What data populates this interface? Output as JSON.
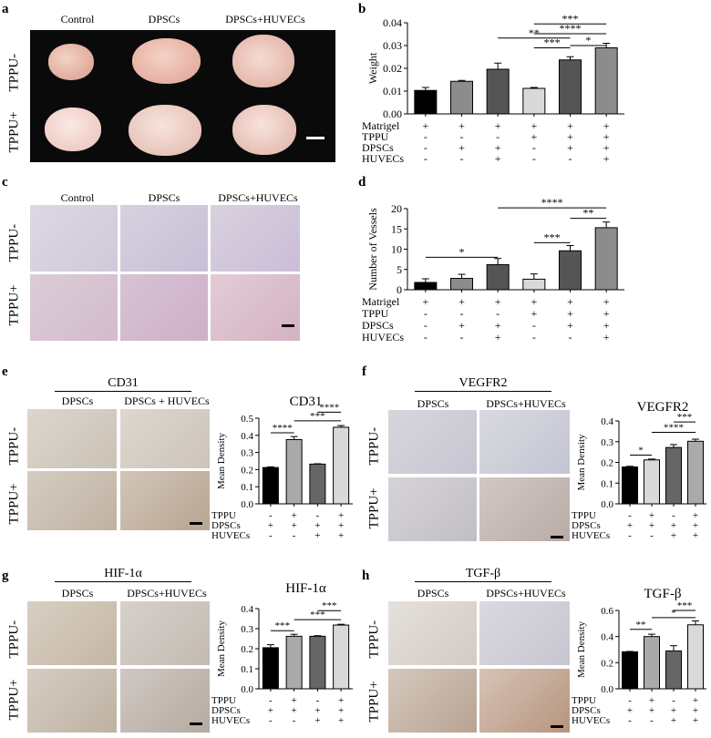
{
  "panels": {
    "a": {
      "letter": "a",
      "cols": [
        "Control",
        "DPSCs",
        "DPSCs+HUVECs"
      ],
      "rows": [
        "TPPU-",
        "TPPU+"
      ]
    },
    "b": {
      "letter": "b"
    },
    "c": {
      "letter": "c",
      "cols": [
        "Control",
        "DPSCs",
        "DPSCs+HUVECs"
      ],
      "rows": [
        "TPPU-",
        "TPPU+"
      ]
    },
    "d": {
      "letter": "d"
    },
    "e": {
      "letter": "e",
      "marker": "CD31",
      "cols": [
        "DPSCs",
        "DPSCs + HUVECs"
      ],
      "rows": [
        "TPPU-",
        "TPPU+"
      ]
    },
    "f": {
      "letter": "f",
      "marker": "VEGFR2",
      "cols": [
        "DPSCs",
        "DPSCs+HUVECs"
      ],
      "rows": [
        "TPPU-",
        "TPPU+"
      ]
    },
    "g": {
      "letter": "g",
      "marker": "HIF-1α",
      "cols": [
        "DPSCs",
        "DPSCs+HUVECs"
      ],
      "rows": [
        "TPPU-",
        "TPPU+"
      ]
    },
    "h": {
      "letter": "h",
      "marker": "TGF-β",
      "cols": [
        "DPSCs",
        "DPSCs+HUVECs"
      ],
      "rows": [
        "TPPU-",
        "TPPU+"
      ]
    }
  },
  "colors": {
    "black": "#000000",
    "dgray": "#555555",
    "mgray": "#8c8c8c",
    "lgray": "#d9d9d9",
    "tissue": "#e9b9ad",
    "he_bg": "#d7d2df",
    "ihc_bg": "#d6cfc6"
  },
  "chart_data": [
    {
      "id": "b",
      "type": "bar",
      "ylabel": "Weight",
      "ylim": [
        0,
        0.04
      ],
      "yticks": [
        0,
        0.01,
        0.02,
        0.03,
        0.04
      ],
      "ytick_labels": [
        "0.00",
        "0.01",
        "0.02",
        "0.03",
        "0.04"
      ],
      "values": [
        0.0103,
        0.0143,
        0.0196,
        0.0112,
        0.0237,
        0.029
      ],
      "errors": [
        0.0013,
        0.0004,
        0.0027,
        0.0004,
        0.0014,
        0.002
      ],
      "bar_colors": [
        "#000000",
        "#8c8c8c",
        "#555555",
        "#d9d9d9",
        "#555555",
        "#8c8c8c"
      ],
      "conditions": [
        {
          "label": "Matrigel",
          "signs": [
            "+",
            "+",
            "+",
            "+",
            "+",
            "+"
          ]
        },
        {
          "label": "TPPU",
          "signs": [
            "-",
            "-",
            "-",
            "+",
            "+",
            "+"
          ]
        },
        {
          "label": "DPSCs",
          "signs": [
            "-",
            "+",
            "+",
            "-",
            "+",
            "+"
          ]
        },
        {
          "label": "HUVECs",
          "signs": [
            "-",
            "-",
            "+",
            "-",
            "-",
            "+"
          ]
        }
      ],
      "significance": [
        {
          "from": 2,
          "to": 4,
          "y": 0.0333,
          "text": "**"
        },
        {
          "from": 3,
          "to": 4,
          "y": 0.029,
          "text": "***"
        },
        {
          "from": 4,
          "to": 5,
          "y": 0.03,
          "text": "*"
        },
        {
          "from": 3,
          "to": 5,
          "y": 0.0352,
          "text": "****"
        },
        {
          "from": 3,
          "to": 5,
          "y": 0.0395,
          "text": "***"
        }
      ]
    },
    {
      "id": "d",
      "type": "bar",
      "ylabel": "Number of Vessels",
      "ylim": [
        0,
        20
      ],
      "yticks": [
        0,
        5,
        10,
        15,
        20
      ],
      "ytick_labels": [
        "0",
        "5",
        "10",
        "15",
        "20"
      ],
      "values": [
        1.8,
        2.8,
        6.2,
        2.6,
        9.6,
        15.3
      ],
      "errors": [
        0.9,
        1.0,
        1.5,
        1.3,
        1.3,
        1.4
      ],
      "bar_colors": [
        "#000000",
        "#8c8c8c",
        "#555555",
        "#d9d9d9",
        "#555555",
        "#8c8c8c"
      ],
      "conditions": [
        {
          "label": "Matrigel",
          "signs": [
            "+",
            "+",
            "+",
            "+",
            "+",
            "+"
          ]
        },
        {
          "label": "TPPU",
          "signs": [
            "-",
            "-",
            "-",
            "+",
            "+",
            "+"
          ]
        },
        {
          "label": "DPSCs",
          "signs": [
            "-",
            "+",
            "+",
            "-",
            "+",
            "+"
          ]
        },
        {
          "label": "HUVECs",
          "signs": [
            "-",
            "-",
            "+",
            "-",
            "-",
            "+"
          ]
        }
      ],
      "significance": [
        {
          "from": 0,
          "to": 2,
          "y": 8.0,
          "text": "*"
        },
        {
          "from": 3,
          "to": 4,
          "y": 11.6,
          "text": "***"
        },
        {
          "from": 4,
          "to": 5,
          "y": 17.6,
          "text": "**"
        },
        {
          "from": 2,
          "to": 5,
          "y": 20.2,
          "text": "****"
        }
      ]
    },
    {
      "id": "e",
      "type": "bar",
      "title": "CD31",
      "ylabel": "Mean Density",
      "ylim": [
        0,
        0.5
      ],
      "yticks": [
        0,
        0.1,
        0.2,
        0.3,
        0.4,
        0.5
      ],
      "ytick_labels": [
        "0.0",
        "0.1",
        "0.2",
        "0.3",
        "0.4",
        "0.5"
      ],
      "values": [
        0.212,
        0.375,
        0.232,
        0.447
      ],
      "errors": [
        0.004,
        0.018,
        0.002,
        0.01
      ],
      "bar_colors": [
        "#000000",
        "#aaaaaa",
        "#666666",
        "#d9d9d9"
      ],
      "conditions": [
        {
          "label": "TPPU",
          "signs": [
            "-",
            "+",
            "-",
            "+"
          ]
        },
        {
          "label": "DPSCs",
          "signs": [
            "+",
            "+",
            "+",
            "+"
          ]
        },
        {
          "label": "HUVECs",
          "signs": [
            "-",
            "-",
            "+",
            "+"
          ]
        }
      ],
      "significance": [
        {
          "from": 0,
          "to": 1,
          "y": 0.415,
          "text": "****"
        },
        {
          "from": 1,
          "to": 3,
          "y": 0.485,
          "text": "***"
        },
        {
          "from": 2,
          "to": 3,
          "y": 0.535,
          "text": "****"
        }
      ]
    },
    {
      "id": "f",
      "type": "bar",
      "title": "VEGFR2",
      "ylabel": "Mean Density",
      "ylim": [
        0,
        0.4
      ],
      "yticks": [
        0,
        0.1,
        0.2,
        0.3,
        0.4
      ],
      "ytick_labels": [
        "0.0",
        "0.1",
        "0.2",
        "0.3",
        "0.4"
      ],
      "values": [
        0.178,
        0.212,
        0.272,
        0.302
      ],
      "errors": [
        0.003,
        0.004,
        0.014,
        0.01
      ],
      "bar_colors": [
        "#000000",
        "#d9d9d9",
        "#666666",
        "#aaaaaa"
      ],
      "conditions": [
        {
          "label": "TPPU",
          "signs": [
            "-",
            "+",
            "-",
            "+"
          ]
        },
        {
          "label": "DPSCs",
          "signs": [
            "+",
            "+",
            "+",
            "+"
          ]
        },
        {
          "label": "HUVECs",
          "signs": [
            "-",
            "-",
            "+",
            "+"
          ]
        }
      ],
      "significance": [
        {
          "from": 0,
          "to": 1,
          "y": 0.235,
          "text": "*"
        },
        {
          "from": 1,
          "to": 3,
          "y": 0.345,
          "text": "****"
        },
        {
          "from": 2,
          "to": 3,
          "y": 0.395,
          "text": "***"
        }
      ]
    },
    {
      "id": "g",
      "type": "bar",
      "title": "HIF-1α",
      "ylabel": "Mean Density",
      "ylim": [
        0,
        0.4
      ],
      "yticks": [
        0,
        0.1,
        0.2,
        0.3,
        0.4
      ],
      "ytick_labels": [
        "0.0",
        "0.1",
        "0.2",
        "0.3",
        "0.4"
      ],
      "values": [
        0.205,
        0.262,
        0.262,
        0.318
      ],
      "errors": [
        0.015,
        0.01,
        0.003,
        0.004
      ],
      "bar_colors": [
        "#000000",
        "#aaaaaa",
        "#666666",
        "#d9d9d9"
      ],
      "conditions": [
        {
          "label": "TPPU",
          "signs": [
            "-",
            "+",
            "-",
            "+"
          ]
        },
        {
          "label": "DPSCs",
          "signs": [
            "+",
            "+",
            "+",
            "+"
          ]
        },
        {
          "label": "HUVECs",
          "signs": [
            "-",
            "-",
            "+",
            "+"
          ]
        }
      ],
      "significance": [
        {
          "from": 0,
          "to": 1,
          "y": 0.29,
          "text": "***"
        },
        {
          "from": 1,
          "to": 3,
          "y": 0.345,
          "text": "***"
        },
        {
          "from": 2,
          "to": 3,
          "y": 0.39,
          "text": "***"
        }
      ]
    },
    {
      "id": "h",
      "type": "bar",
      "title": "TGF-β",
      "ylabel": "Mean Density",
      "ylim": [
        0,
        0.6
      ],
      "yticks": [
        0,
        0.2,
        0.4,
        0.6
      ],
      "ytick_labels": [
        "0.0",
        "0.2",
        "0.4",
        "0.6"
      ],
      "values": [
        0.283,
        0.4,
        0.29,
        0.49
      ],
      "errors": [
        0.003,
        0.018,
        0.04,
        0.03
      ],
      "bar_colors": [
        "#000000",
        "#aaaaaa",
        "#666666",
        "#d9d9d9"
      ],
      "conditions": [
        {
          "label": "TPPU",
          "signs": [
            "-",
            "+",
            "-",
            "+"
          ]
        },
        {
          "label": "DPSCs",
          "signs": [
            "+",
            "+",
            "+",
            "+"
          ]
        },
        {
          "label": "HUVECs",
          "signs": [
            "-",
            "-",
            "+",
            "+"
          ]
        }
      ],
      "significance": [
        {
          "from": 0,
          "to": 1,
          "y": 0.455,
          "text": "**"
        },
        {
          "from": 1,
          "to": 3,
          "y": 0.545,
          "text": "*"
        },
        {
          "from": 2,
          "to": 3,
          "y": 0.6,
          "text": "***"
        }
      ]
    }
  ]
}
